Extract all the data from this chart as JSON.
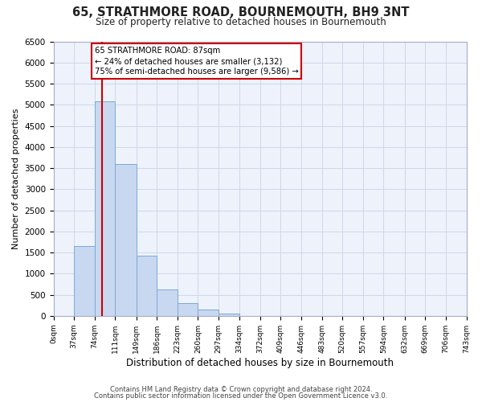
{
  "title": "65, STRATHMORE ROAD, BOURNEMOUTH, BH9 3NT",
  "subtitle": "Size of property relative to detached houses in Bournemouth",
  "xlabel": "Distribution of detached houses by size in Bournemouth",
  "ylabel": "Number of detached properties",
  "bar_edges": [
    0,
    37,
    74,
    111,
    149,
    186,
    223,
    260,
    297,
    334,
    372,
    409,
    446,
    483,
    520,
    557,
    594,
    632,
    669,
    706,
    743
  ],
  "bar_heights": [
    0,
    1650,
    5080,
    3600,
    1430,
    620,
    300,
    150,
    60,
    0,
    0,
    0,
    0,
    0,
    0,
    0,
    0,
    0,
    0,
    0
  ],
  "bar_color": "#c8d8f0",
  "bar_edge_color": "#7aaad8",
  "property_line_x": 87,
  "property_line_color": "#cc0000",
  "annotation_line1": "65 STRATHMORE ROAD: 87sqm",
  "annotation_line2": "← 24% of detached houses are smaller (3,132)",
  "annotation_line3": "75% of semi-detached houses are larger (9,586) →",
  "annotation_box_color": "#ffffff",
  "annotation_box_edge_color": "#cc0000",
  "ylim": [
    0,
    6500
  ],
  "yticks": [
    0,
    500,
    1000,
    1500,
    2000,
    2500,
    3000,
    3500,
    4000,
    4500,
    5000,
    5500,
    6000,
    6500
  ],
  "tick_labels": [
    "0sqm",
    "37sqm",
    "74sqm",
    "111sqm",
    "149sqm",
    "186sqm",
    "223sqm",
    "260sqm",
    "297sqm",
    "334sqm",
    "372sqm",
    "409sqm",
    "446sqm",
    "483sqm",
    "520sqm",
    "557sqm",
    "594sqm",
    "632sqm",
    "669sqm",
    "706sqm",
    "743sqm"
  ],
  "footer1": "Contains HM Land Registry data © Crown copyright and database right 2024.",
  "footer2": "Contains public sector information licensed under the Open Government Licence v3.0.",
  "grid_color": "#cdd8eb",
  "background_color": "#eef2fa",
  "figwidth": 6.0,
  "figheight": 5.0,
  "dpi": 100
}
